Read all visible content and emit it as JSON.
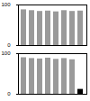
{
  "chart_data": [
    {
      "type": "bar",
      "categories": [
        null,
        null,
        null,
        null,
        null,
        null,
        null,
        null
      ],
      "values": [
        88,
        86,
        84,
        85,
        83,
        86,
        84,
        85
      ],
      "color": "#9a9a9a",
      "ylim": [
        0,
        100
      ],
      "yticks": [
        0,
        100
      ],
      "tick_labels": "y"
    },
    {
      "type": "bar",
      "categories": [
        null,
        null,
        null,
        null,
        null,
        null,
        null,
        null
      ],
      "values": [
        90,
        88,
        87,
        89,
        86,
        88,
        85,
        12
      ],
      "colors": [
        "#9a9a9a",
        "#9a9a9a",
        "#9a9a9a",
        "#9a9a9a",
        "#9a9a9a",
        "#9a9a9a",
        "#9a9a9a",
        "#000000"
      ],
      "ylim": [
        0,
        100
      ],
      "yticks": [
        0,
        100
      ],
      "tick_labels": "y"
    }
  ]
}
